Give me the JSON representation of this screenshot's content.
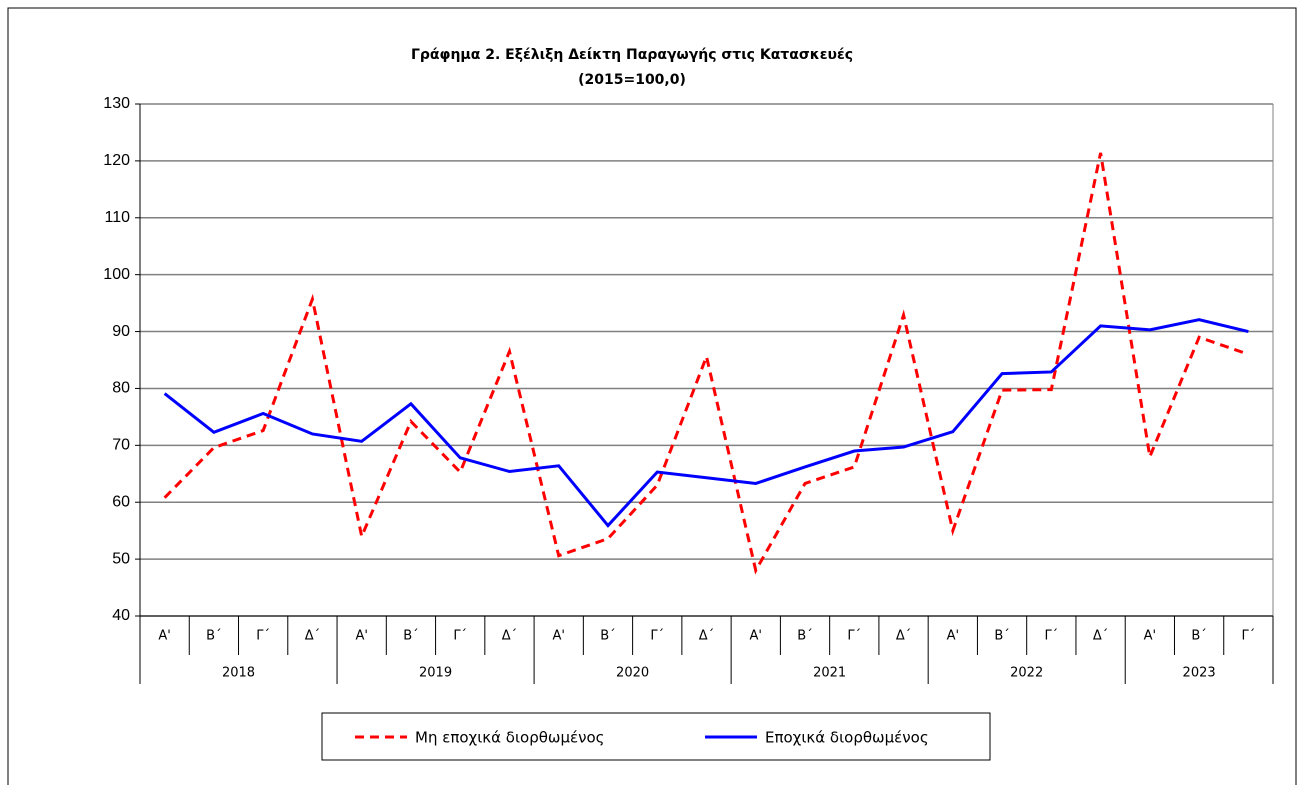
{
  "chart_data": {
    "type": "line",
    "title": "Γράφημα 2. Εξέλιξη  Δείκτη  Παραγωγής  στις  Κατασκευές",
    "subtitle": "(2015=100,0)",
    "categories": [
      "Α'",
      "Β΄",
      "Γ΄",
      "Δ΄",
      "Α'",
      "Β΄",
      "Γ΄",
      "Δ΄",
      "Α'",
      "Β΄",
      "Γ΄",
      "Δ΄",
      "Α'",
      "Β΄",
      "Γ΄",
      "Δ΄",
      "Α'",
      "Β΄",
      "Γ΄",
      "Δ΄",
      "Α'",
      "Β΄",
      "Γ΄"
    ],
    "year_groups": [
      {
        "label": "2018",
        "span": 4
      },
      {
        "label": "2019",
        "span": 4
      },
      {
        "label": "2020",
        "span": 4
      },
      {
        "label": "2021",
        "span": 4
      },
      {
        "label": "2022",
        "span": 4
      },
      {
        "label": "2023",
        "span": 3
      }
    ],
    "series": [
      {
        "name": "Μη εποχικά διορθωμένος",
        "color": "#ff0000",
        "dashed": true,
        "values": [
          60.8,
          69.6,
          72.6,
          95.7,
          54.0,
          74.2,
          65.3,
          86.5,
          50.6,
          53.6,
          63.0,
          85.6,
          48.0,
          63.3,
          66.2,
          92.9,
          55.0,
          79.7,
          79.8,
          121.4,
          68.0,
          89.0,
          86.0
        ]
      },
      {
        "name": "Εποχικά διορθωμένος",
        "color": "#0000ff",
        "dashed": false,
        "values": [
          79.1,
          72.3,
          75.6,
          72.0,
          70.7,
          77.3,
          67.8,
          65.4,
          66.4,
          55.9,
          65.3,
          64.3,
          63.3,
          66.2,
          69.0,
          69.7,
          72.4,
          82.6,
          82.9,
          91.0,
          90.3,
          92.1,
          90.0
        ]
      }
    ],
    "ylim": [
      40,
      130
    ],
    "yticks": [
      40,
      50,
      60,
      70,
      80,
      90,
      100,
      110,
      120,
      130
    ],
    "grid": true,
    "legend": "bottom"
  }
}
